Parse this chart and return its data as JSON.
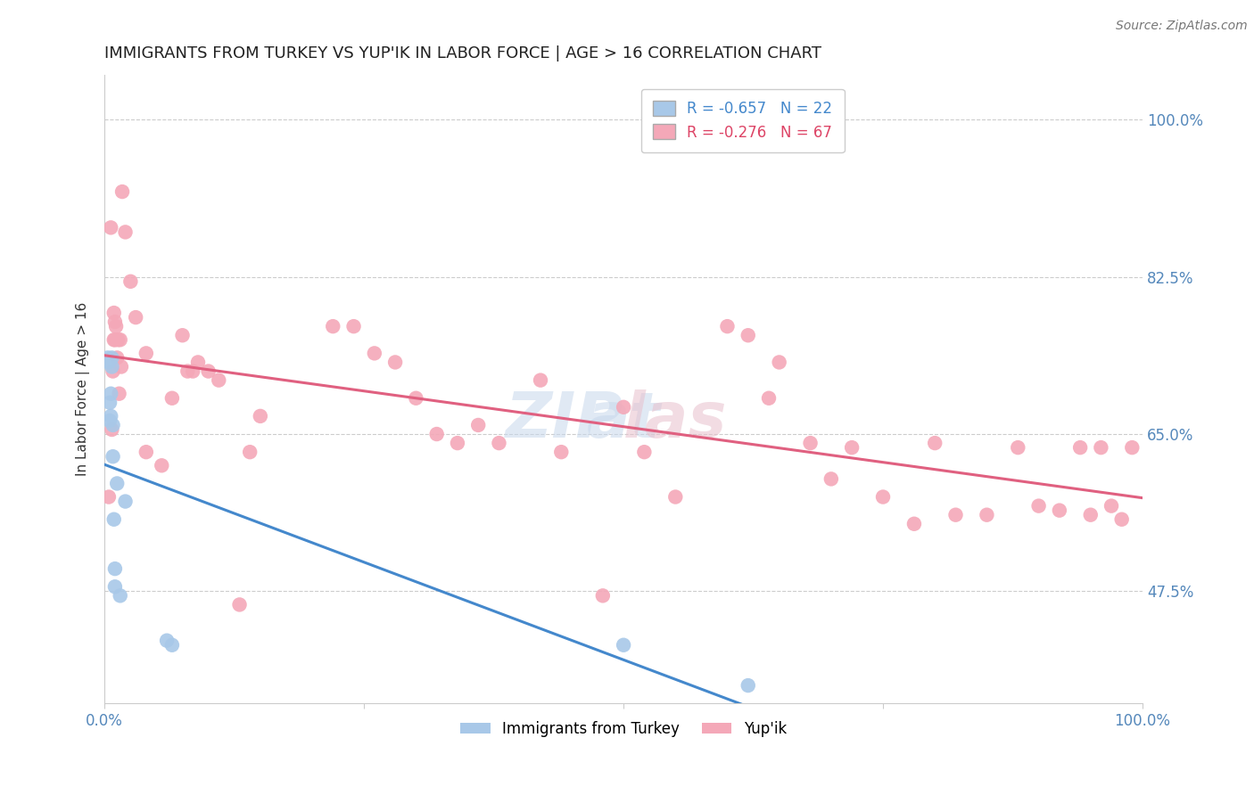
{
  "title": "IMMIGRANTS FROM TURKEY VS YUP'IK IN LABOR FORCE | AGE > 16 CORRELATION CHART",
  "source": "Source: ZipAtlas.com",
  "ylabel": "In Labor Force | Age > 16",
  "xlim": [
    0.0,
    1.0
  ],
  "ylim": [
    0.35,
    1.05
  ],
  "ytick_positions": [
    0.475,
    0.65,
    0.825,
    1.0
  ],
  "ytick_labels": [
    "47.5%",
    "65.0%",
    "82.5%",
    "100.0%"
  ],
  "turkey_color": "#a8c8e8",
  "yupik_color": "#f4a8b8",
  "turkey_line_color": "#4488cc",
  "yupik_line_color": "#e06080",
  "turkey_x": [
    0.003,
    0.004,
    0.005,
    0.005,
    0.006,
    0.006,
    0.007,
    0.007,
    0.008,
    0.008,
    0.009,
    0.01,
    0.01,
    0.012,
    0.015,
    0.02,
    0.06,
    0.065,
    0.5,
    0.62
  ],
  "turkey_y": [
    0.735,
    0.73,
    0.685,
    0.665,
    0.695,
    0.67,
    0.735,
    0.725,
    0.66,
    0.625,
    0.555,
    0.5,
    0.48,
    0.595,
    0.47,
    0.575,
    0.42,
    0.415,
    0.415,
    0.37
  ],
  "yupik_x": [
    0.004,
    0.006,
    0.007,
    0.008,
    0.009,
    0.009,
    0.01,
    0.01,
    0.011,
    0.012,
    0.013,
    0.014,
    0.015,
    0.016,
    0.017,
    0.02,
    0.025,
    0.03,
    0.04,
    0.08,
    0.1,
    0.13,
    0.14,
    0.15,
    0.22,
    0.24,
    0.26,
    0.28,
    0.3,
    0.32,
    0.34,
    0.36,
    0.38,
    0.42,
    0.44,
    0.48,
    0.5,
    0.52,
    0.55,
    0.6,
    0.62,
    0.64,
    0.65,
    0.68,
    0.7,
    0.72,
    0.75,
    0.78,
    0.8,
    0.82,
    0.85,
    0.88,
    0.9,
    0.92,
    0.94,
    0.95,
    0.96,
    0.97,
    0.98,
    0.99,
    0.04,
    0.055,
    0.065,
    0.075,
    0.085,
    0.09,
    0.11
  ],
  "yupik_y": [
    0.58,
    0.88,
    0.655,
    0.72,
    0.785,
    0.755,
    0.775,
    0.755,
    0.77,
    0.735,
    0.755,
    0.695,
    0.755,
    0.725,
    0.92,
    0.875,
    0.82,
    0.78,
    0.74,
    0.72,
    0.72,
    0.46,
    0.63,
    0.67,
    0.77,
    0.77,
    0.74,
    0.73,
    0.69,
    0.65,
    0.64,
    0.66,
    0.64,
    0.71,
    0.63,
    0.47,
    0.68,
    0.63,
    0.58,
    0.77,
    0.76,
    0.69,
    0.73,
    0.64,
    0.6,
    0.635,
    0.58,
    0.55,
    0.64,
    0.56,
    0.56,
    0.635,
    0.57,
    0.565,
    0.635,
    0.56,
    0.635,
    0.57,
    0.555,
    0.635,
    0.63,
    0.615,
    0.69,
    0.76,
    0.72,
    0.73,
    0.71
  ]
}
